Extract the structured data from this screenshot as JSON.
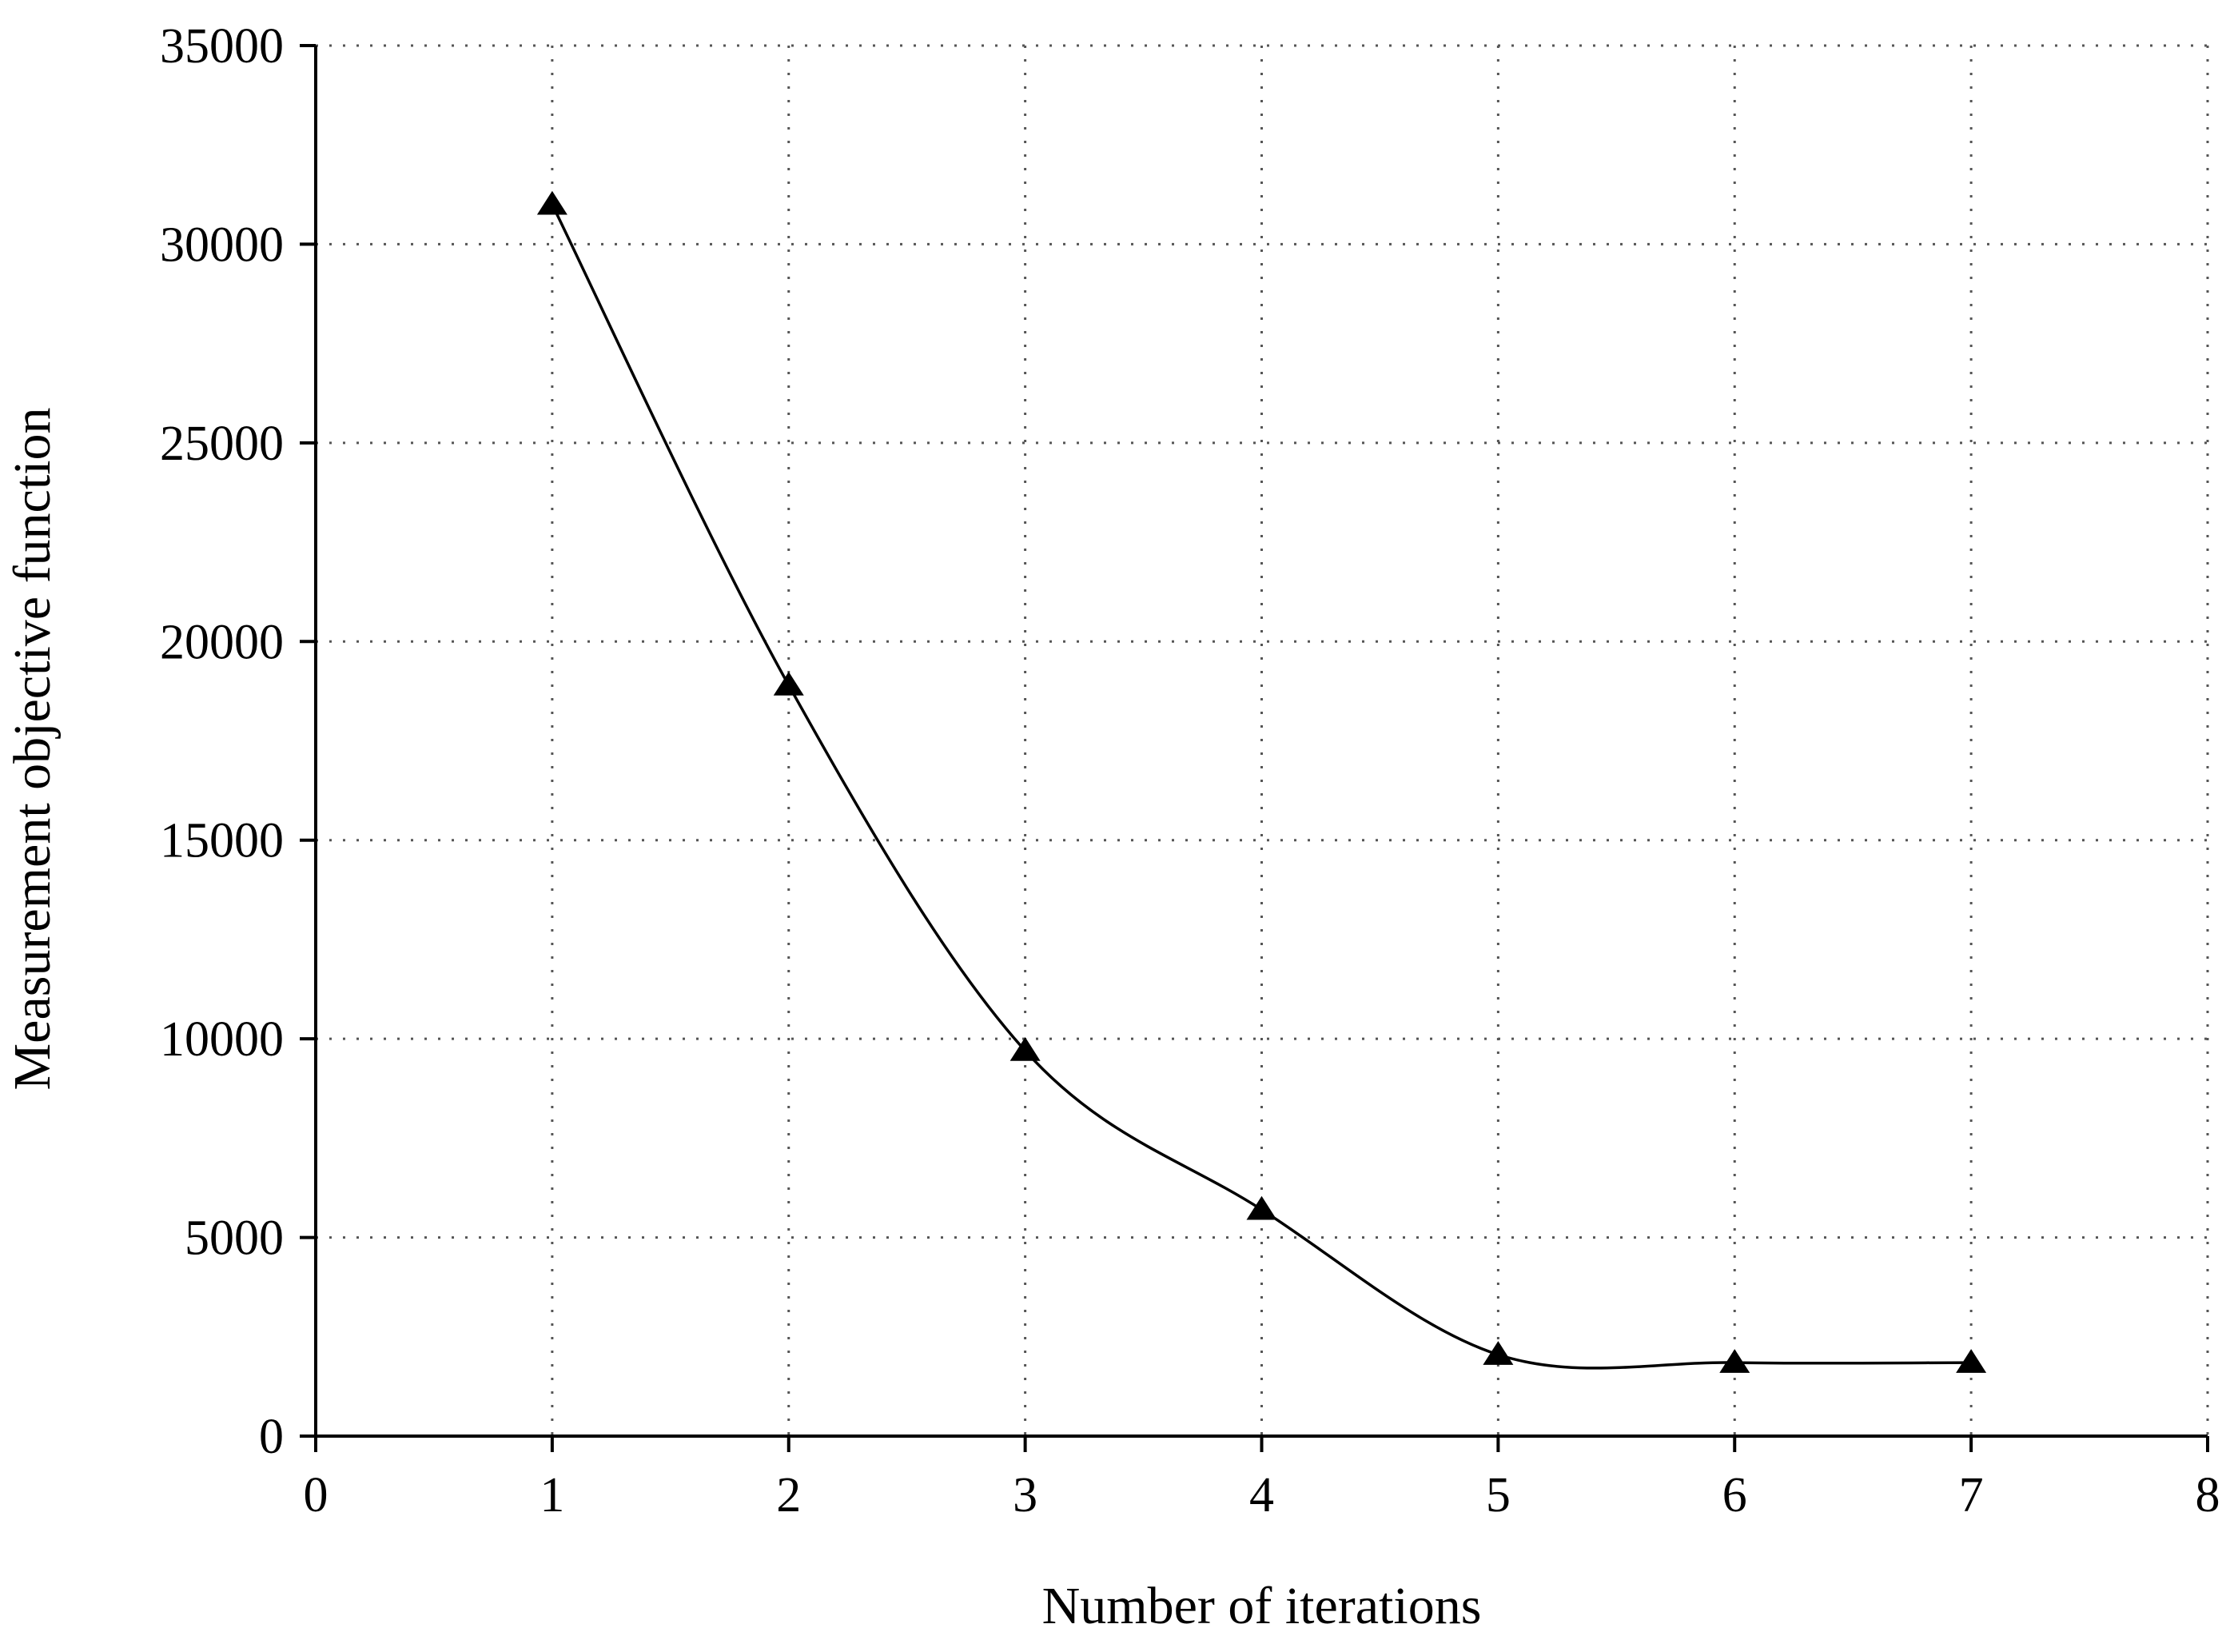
{
  "chart_data": {
    "type": "line",
    "title": "",
    "xlabel": "Number of iterations",
    "ylabel": "Measurement objective function",
    "xlim": [
      0,
      8
    ],
    "ylim": [
      0,
      35000
    ],
    "x_ticks": [
      0,
      1,
      2,
      3,
      4,
      5,
      6,
      7,
      8
    ],
    "y_ticks": [
      0,
      5000,
      10000,
      15000,
      20000,
      25000,
      30000,
      35000
    ],
    "grid": true,
    "smooth": true,
    "marker": "triangle",
    "series": [
      {
        "x": [
          1,
          2,
          3,
          4,
          5,
          6,
          7
        ],
        "values": [
          31000,
          18900,
          9700,
          5700,
          2050,
          1850,
          1850
        ]
      }
    ],
    "colors": {
      "line": "#000000",
      "marker": "#000000",
      "grid": "#555555"
    }
  }
}
